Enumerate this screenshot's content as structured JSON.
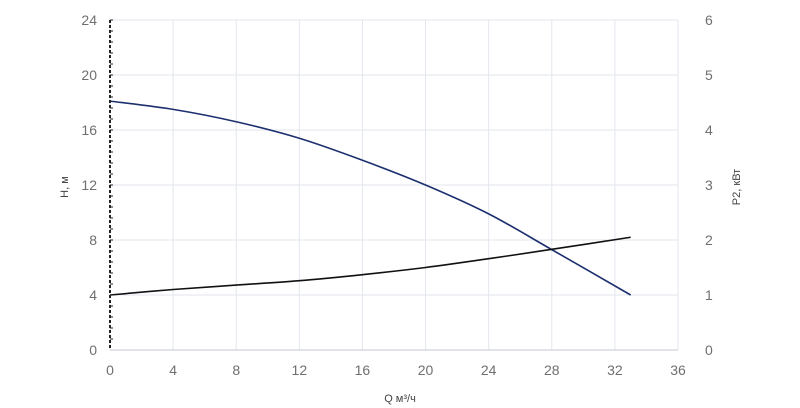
{
  "chart_data": {
    "type": "line",
    "title": "",
    "xlabel": "Q м³/ч",
    "ylabel": "H, м",
    "y2label": "P2, кВт",
    "xlim": [
      0,
      36
    ],
    "ylim": [
      0,
      24
    ],
    "y2lim": [
      0,
      6
    ],
    "x_ticks": [
      0,
      4,
      8,
      12,
      16,
      20,
      24,
      28,
      32,
      36
    ],
    "y_ticks": [
      0,
      4,
      8,
      12,
      16,
      20,
      24
    ],
    "y2_ticks": [
      0,
      1,
      2,
      3,
      4,
      5,
      6
    ],
    "grid": true,
    "series": [
      {
        "axis": "left",
        "color": "#1c2f6e",
        "x": [
          0,
          4,
          8,
          12,
          16,
          20,
          24,
          28,
          33
        ],
        "y": [
          18.1,
          17.5,
          16.6,
          15.4,
          13.8,
          12.0,
          9.9,
          7.3,
          4.0
        ]
      },
      {
        "axis": "right",
        "color": "#111111",
        "x": [
          0,
          4,
          8,
          12,
          16,
          20,
          24,
          28,
          33
        ],
        "y": [
          1.0,
          1.1,
          1.18,
          1.26,
          1.37,
          1.5,
          1.66,
          1.83,
          2.05
        ]
      }
    ]
  }
}
